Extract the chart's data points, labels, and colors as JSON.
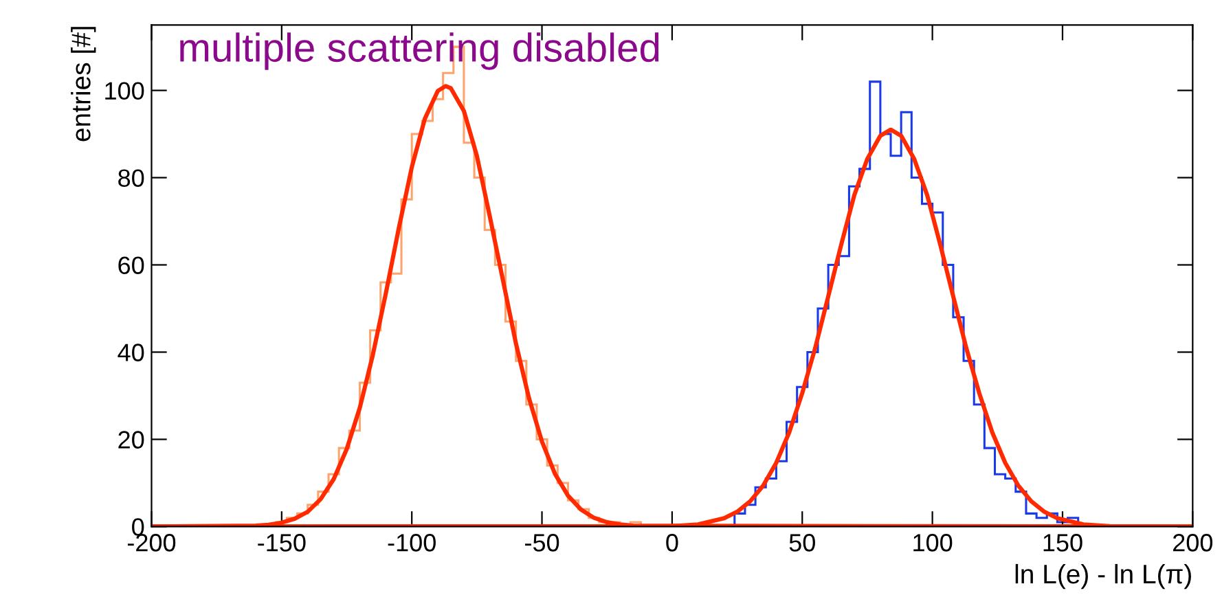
{
  "chart_data": {
    "type": "histogram",
    "xlabel": "ln L(e) - ln L(π)",
    "ylabel": "entries [#]",
    "annotations": [
      "multiple scattering disabled"
    ],
    "xlim": [
      -200,
      200
    ],
    "xticks": [
      -200,
      -150,
      -100,
      -50,
      0,
      50,
      100,
      150,
      200
    ],
    "ylim": [
      0,
      115
    ],
    "yticks": [
      0,
      20,
      40,
      60,
      80,
      100
    ],
    "grid": false,
    "legend": false,
    "series": [
      {
        "color": "#ffa36c",
        "bins": [
          -152,
          -148,
          -144,
          -140,
          -136,
          -132,
          -128,
          -124,
          -120,
          -116,
          -112,
          -108,
          -104,
          -100,
          -96,
          -92,
          -88,
          -84,
          -80,
          -76,
          -72,
          -68,
          -64,
          -60,
          -56,
          -52,
          -48,
          -44,
          -40,
          -36,
          -32,
          -28,
          -24,
          -20,
          -16,
          -12
        ],
        "values": [
          1,
          2,
          3,
          5,
          8,
          12,
          18,
          22,
          33,
          45,
          56,
          58,
          75,
          90,
          93,
          98,
          104,
          110,
          88,
          80,
          68,
          60,
          47,
          38,
          28,
          20,
          14,
          10,
          6,
          4,
          2,
          1,
          1,
          0,
          1
        ]
      },
      {
        "color": "#1a3ae8",
        "bins": [
          24,
          28,
          32,
          36,
          40,
          44,
          48,
          52,
          56,
          60,
          64,
          68,
          72,
          76,
          80,
          84,
          88,
          92,
          96,
          100,
          104,
          108,
          112,
          116,
          120,
          124,
          128,
          132,
          136,
          140,
          144,
          148,
          152,
          156,
          160
        ],
        "values": [
          3,
          5,
          9,
          11,
          15,
          24,
          32,
          40,
          50,
          60,
          62,
          78,
          82,
          102,
          90,
          85,
          95,
          80,
          74,
          72,
          60,
          48,
          38,
          28,
          18,
          12,
          11,
          8,
          3,
          2,
          3,
          1,
          2,
          0
        ]
      },
      {
        "type": "line",
        "color": "#ff2a00",
        "x": [
          -200,
          -160,
          -155,
          -150,
          -145,
          -140,
          -135,
          -130,
          -125,
          -120,
          -115,
          -110,
          -105,
          -100,
          -95,
          -90,
          -87,
          -85,
          -80,
          -75,
          -70,
          -65,
          -60,
          -55,
          -50,
          -45,
          -40,
          -35,
          -30,
          -25,
          -20,
          -15,
          200
        ],
        "values": [
          0,
          0.2,
          0.4,
          0.9,
          1.8,
          3.4,
          6.3,
          10.9,
          17.8,
          27.2,
          39.3,
          53.4,
          68.4,
          82.4,
          93.5,
          99.9,
          101,
          100.5,
          95.3,
          85,
          71,
          56.5,
          42,
          29.5,
          19.5,
          12.1,
          7.1,
          3.9,
          2.0,
          1.0,
          0.5,
          0.2,
          0
        ]
      },
      {
        "type": "line",
        "color": "#ff2a00",
        "x": [
          -200,
          0,
          10,
          20,
          25,
          30,
          35,
          40,
          45,
          50,
          55,
          60,
          65,
          70,
          75,
          80,
          84,
          88,
          93,
          98,
          103,
          108,
          113,
          118,
          123,
          128,
          133,
          138,
          143,
          148,
          158,
          168,
          200
        ],
        "values": [
          0,
          0.1,
          0.5,
          1.9,
          3.4,
          5.8,
          9.4,
          14.6,
          21.6,
          30.6,
          41,
          52.8,
          64.7,
          76,
          84.3,
          89.6,
          91,
          89.6,
          84.3,
          76,
          64.7,
          52.8,
          41,
          30.6,
          21.6,
          14.6,
          9.4,
          5.8,
          3.4,
          1.9,
          0.5,
          0.1,
          0
        ]
      }
    ]
  }
}
